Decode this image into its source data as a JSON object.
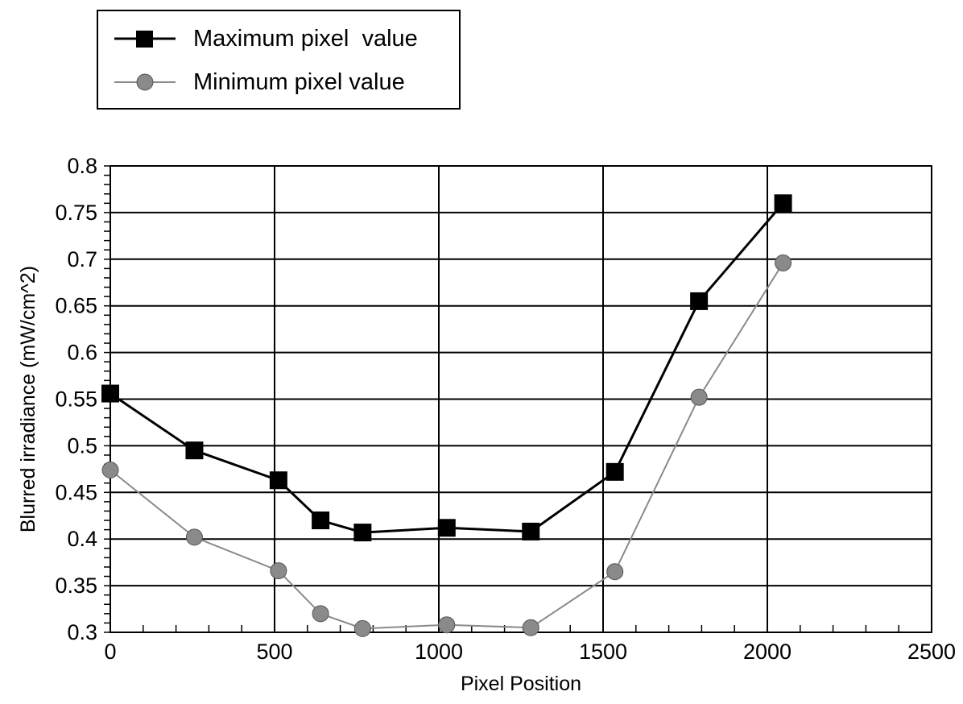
{
  "chart_data": {
    "type": "line",
    "title": "",
    "xlabel": "Pixel Position",
    "ylabel": "Blurred irradiance (mW/cm^2)",
    "xlim": [
      0,
      2500
    ],
    "ylim": [
      0.3,
      0.8
    ],
    "xticks": [
      0,
      500,
      1000,
      1500,
      2000,
      2500
    ],
    "xtick_labels": [
      "0",
      "500",
      "1000",
      "1500",
      "2000",
      "2500"
    ],
    "yticks": [
      0.3,
      0.35,
      0.4,
      0.45,
      0.5,
      0.55,
      0.6,
      0.65,
      0.7,
      0.75,
      0.8
    ],
    "ytick_labels": [
      "0.3",
      "0.35",
      "0.4",
      "0.45",
      "0.5",
      "0.55",
      "0.6",
      "0.65",
      "0.7",
      "0.75",
      "0.8"
    ],
    "grid": true,
    "legend_position": "top-left, above plot",
    "series": [
      {
        "name": "Maximum pixel  value",
        "marker": "square",
        "color": "#000000",
        "x": [
          0,
          256,
          512,
          640,
          768,
          1024,
          1280,
          1536,
          1792,
          2048
        ],
        "y": [
          0.556,
          0.495,
          0.463,
          0.42,
          0.407,
          0.412,
          0.408,
          0.472,
          0.655,
          0.76
        ]
      },
      {
        "name": "Minimum pixel value",
        "marker": "circle",
        "color": "#8a8a8a",
        "x": [
          0,
          256,
          512,
          640,
          768,
          1024,
          1280,
          1536,
          1792,
          2048
        ],
        "y": [
          0.474,
          0.402,
          0.366,
          0.32,
          0.304,
          0.308,
          0.305,
          0.365,
          0.552,
          0.696
        ]
      }
    ]
  }
}
